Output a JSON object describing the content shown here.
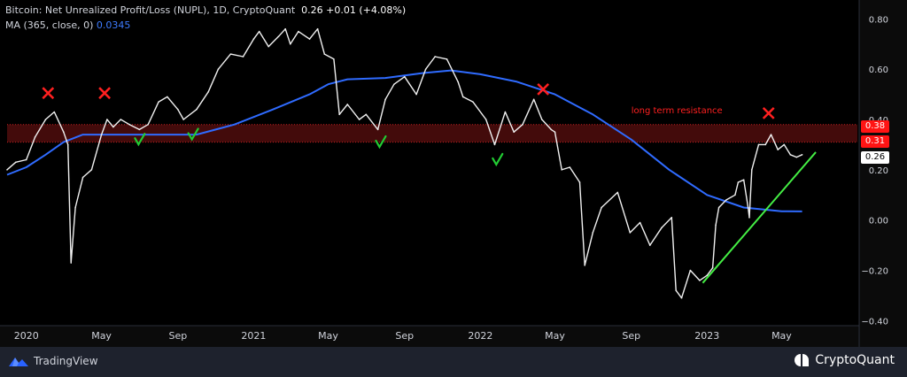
{
  "header": {
    "title": "Bitcoin: Net Unrealized Profit/Loss (NUPL), 1D, CryptoQuant",
    "last_value": "0.26",
    "change": "+0.01 (+4.08%)",
    "ma_label": "MA (365, close, 0)",
    "ma_value": "0.0345"
  },
  "footer": {
    "tradingview_label": "TradingView",
    "cryptoquant_label": "CryptoQuant"
  },
  "price_badges": {
    "upper": "0.38",
    "lower": "0.31",
    "last": "0.26"
  },
  "colors": {
    "background": "#000000",
    "nupl_line": "#f0f0f0",
    "ma_line": "#2f6bff",
    "resistance_band": "#7a1414",
    "resistance_text": "#ff2020",
    "cross_marker": "#ff2020",
    "check_marker": "#22cc33",
    "trend_line": "#44ee44"
  },
  "chart_data": {
    "type": "line",
    "title": "Bitcoin: Net Unrealized Profit/Loss (NUPL), 1D, CryptoQuant",
    "xlabel": "",
    "ylabel": "",
    "xlim": [
      "2019-12-01",
      "2023-08-31"
    ],
    "ylim": [
      -0.42,
      0.84
    ],
    "x_ticks": [
      {
        "date": "2020-01-01",
        "label": "2020"
      },
      {
        "date": "2020-05-01",
        "label": "May"
      },
      {
        "date": "2020-09-01",
        "label": "Sep"
      },
      {
        "date": "2021-01-01",
        "label": "2021"
      },
      {
        "date": "2021-05-01",
        "label": "May"
      },
      {
        "date": "2021-09-01",
        "label": "Sep"
      },
      {
        "date": "2022-01-01",
        "label": "2022"
      },
      {
        "date": "2022-05-01",
        "label": "May"
      },
      {
        "date": "2022-09-01",
        "label": "Sep"
      },
      {
        "date": "2023-01-01",
        "label": "2023"
      },
      {
        "date": "2023-05-01",
        "label": "May"
      }
    ],
    "y_ticks": [
      0.8,
      0.6,
      0.4,
      0.2,
      0.0,
      -0.2,
      -0.4
    ],
    "y_tick_labels": [
      "0.80",
      "0.60",
      "0.40",
      "0.20",
      "0.00",
      "−0.20",
      "−0.40"
    ],
    "grid": false,
    "series": [
      {
        "name": "Net Unrealized Profit/Loss (NUPL)",
        "color": "#f0f0f0",
        "points": [
          [
            "2019-12-01",
            0.2
          ],
          [
            "2019-12-15",
            0.23
          ],
          [
            "2020-01-01",
            0.24
          ],
          [
            "2020-01-15",
            0.33
          ],
          [
            "2020-02-01",
            0.4
          ],
          [
            "2020-02-15",
            0.43
          ],
          [
            "2020-03-01",
            0.35
          ],
          [
            "2020-03-08",
            0.3
          ],
          [
            "2020-03-13",
            -0.17
          ],
          [
            "2020-03-20",
            0.05
          ],
          [
            "2020-04-01",
            0.17
          ],
          [
            "2020-04-15",
            0.2
          ],
          [
            "2020-05-01",
            0.34
          ],
          [
            "2020-05-10",
            0.4
          ],
          [
            "2020-05-20",
            0.37
          ],
          [
            "2020-06-01",
            0.4
          ],
          [
            "2020-06-15",
            0.38
          ],
          [
            "2020-07-01",
            0.36
          ],
          [
            "2020-07-15",
            0.38
          ],
          [
            "2020-08-01",
            0.47
          ],
          [
            "2020-08-15",
            0.49
          ],
          [
            "2020-09-01",
            0.44
          ],
          [
            "2020-09-10",
            0.4
          ],
          [
            "2020-10-01",
            0.44
          ],
          [
            "2020-10-20",
            0.51
          ],
          [
            "2020-11-05",
            0.6
          ],
          [
            "2020-11-25",
            0.66
          ],
          [
            "2020-12-15",
            0.65
          ],
          [
            "2021-01-01",
            0.72
          ],
          [
            "2021-01-10",
            0.75
          ],
          [
            "2021-01-25",
            0.69
          ],
          [
            "2021-02-10",
            0.73
          ],
          [
            "2021-02-21",
            0.76
          ],
          [
            "2021-03-01",
            0.7
          ],
          [
            "2021-03-14",
            0.75
          ],
          [
            "2021-04-01",
            0.72
          ],
          [
            "2021-04-14",
            0.76
          ],
          [
            "2021-04-25",
            0.66
          ],
          [
            "2021-05-10",
            0.64
          ],
          [
            "2021-05-19",
            0.42
          ],
          [
            "2021-06-01",
            0.46
          ],
          [
            "2021-06-20",
            0.4
          ],
          [
            "2021-07-01",
            0.42
          ],
          [
            "2021-07-20",
            0.36
          ],
          [
            "2021-08-01",
            0.48
          ],
          [
            "2021-08-15",
            0.54
          ],
          [
            "2021-09-01",
            0.57
          ],
          [
            "2021-09-20",
            0.5
          ],
          [
            "2021-10-05",
            0.6
          ],
          [
            "2021-10-20",
            0.65
          ],
          [
            "2021-11-08",
            0.64
          ],
          [
            "2021-11-26",
            0.55
          ],
          [
            "2021-12-04",
            0.49
          ],
          [
            "2021-12-20",
            0.47
          ],
          [
            "2022-01-10",
            0.4
          ],
          [
            "2022-01-24",
            0.3
          ],
          [
            "2022-02-10",
            0.43
          ],
          [
            "2022-02-24",
            0.35
          ],
          [
            "2022-03-10",
            0.38
          ],
          [
            "2022-03-28",
            0.48
          ],
          [
            "2022-04-10",
            0.4
          ],
          [
            "2022-04-25",
            0.36
          ],
          [
            "2022-05-01",
            0.35
          ],
          [
            "2022-05-12",
            0.2
          ],
          [
            "2022-05-25",
            0.21
          ],
          [
            "2022-06-10",
            0.15
          ],
          [
            "2022-06-18",
            -0.18
          ],
          [
            "2022-07-01",
            -0.05
          ],
          [
            "2022-07-15",
            0.05
          ],
          [
            "2022-08-10",
            0.11
          ],
          [
            "2022-08-30",
            -0.05
          ],
          [
            "2022-09-15",
            -0.01
          ],
          [
            "2022-10-01",
            -0.1
          ],
          [
            "2022-10-20",
            -0.03
          ],
          [
            "2022-11-05",
            0.01
          ],
          [
            "2022-11-12",
            -0.28
          ],
          [
            "2022-11-21",
            -0.31
          ],
          [
            "2022-12-05",
            -0.2
          ],
          [
            "2022-12-20",
            -0.24
          ],
          [
            "2023-01-01",
            -0.22
          ],
          [
            "2023-01-10",
            -0.19
          ],
          [
            "2023-01-15",
            -0.02
          ],
          [
            "2023-01-20",
            0.05
          ],
          [
            "2023-02-01",
            0.08
          ],
          [
            "2023-02-15",
            0.1
          ],
          [
            "2023-02-20",
            0.15
          ],
          [
            "2023-03-01",
            0.16
          ],
          [
            "2023-03-08",
            0.05
          ],
          [
            "2023-03-10",
            0.01
          ],
          [
            "2023-03-14",
            0.2
          ],
          [
            "2023-03-25",
            0.3
          ],
          [
            "2023-04-05",
            0.3
          ],
          [
            "2023-04-14",
            0.34
          ],
          [
            "2023-04-25",
            0.28
          ],
          [
            "2023-05-05",
            0.3
          ],
          [
            "2023-05-15",
            0.26
          ],
          [
            "2023-05-25",
            0.25
          ],
          [
            "2023-06-03",
            0.26
          ]
        ]
      },
      {
        "name": "MA (365, close, 0)",
        "color": "#2f6bff",
        "points": [
          [
            "2019-12-01",
            0.18
          ],
          [
            "2020-01-01",
            0.21
          ],
          [
            "2020-02-01",
            0.26
          ],
          [
            "2020-03-01",
            0.31
          ],
          [
            "2020-04-01",
            0.34
          ],
          [
            "2020-06-01",
            0.34
          ],
          [
            "2020-08-01",
            0.34
          ],
          [
            "2020-10-01",
            0.34
          ],
          [
            "2020-12-01",
            0.38
          ],
          [
            "2021-02-01",
            0.44
          ],
          [
            "2021-04-01",
            0.5
          ],
          [
            "2021-05-01",
            0.54
          ],
          [
            "2021-06-01",
            0.56
          ],
          [
            "2021-08-01",
            0.565
          ],
          [
            "2021-10-01",
            0.585
          ],
          [
            "2021-11-15",
            0.595
          ],
          [
            "2022-01-01",
            0.58
          ],
          [
            "2022-03-01",
            0.55
          ],
          [
            "2022-05-01",
            0.5
          ],
          [
            "2022-07-01",
            0.42
          ],
          [
            "2022-09-01",
            0.32
          ],
          [
            "2022-11-01",
            0.2
          ],
          [
            "2023-01-01",
            0.1
          ],
          [
            "2023-03-01",
            0.05
          ],
          [
            "2023-05-01",
            0.035
          ],
          [
            "2023-06-03",
            0.0345
          ]
        ]
      }
    ],
    "annotations": [
      {
        "type": "band",
        "y_from": 0.31,
        "y_to": 0.38,
        "label": "long term resistance",
        "label_date": "2022-09-01",
        "label_y": 0.425
      },
      {
        "type": "cross",
        "date": "2020-02-05",
        "y": 0.505
      },
      {
        "type": "cross",
        "date": "2020-05-06",
        "y": 0.505
      },
      {
        "type": "cross",
        "date": "2022-04-12",
        "y": 0.52
      },
      {
        "type": "cross",
        "date": "2023-04-10",
        "y": 0.425
      },
      {
        "type": "check",
        "date": "2020-07-01",
        "y": 0.315
      },
      {
        "type": "check",
        "date": "2020-09-25",
        "y": 0.335
      },
      {
        "type": "check",
        "date": "2021-07-24",
        "y": 0.305
      },
      {
        "type": "check",
        "date": "2022-01-28",
        "y": 0.235
      },
      {
        "type": "trendline",
        "from": [
          "2022-12-25",
          -0.25
        ],
        "to": [
          "2023-06-25",
          0.27
        ]
      }
    ]
  }
}
